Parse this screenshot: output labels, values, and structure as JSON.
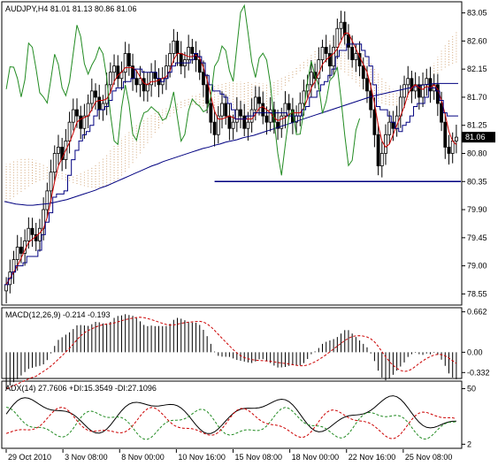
{
  "window": {
    "title": "AUDJPY,H4  81.01 81.13 80.86 81.06"
  },
  "colors": {
    "bull": "#000000",
    "bear": "#000000",
    "tenkan": "#cc0000",
    "kijun": "#000080",
    "chikou": "#228b22",
    "cloud": "#d2a679",
    "ma": "#000080",
    "level": "#000080",
    "macd_hist": "#000000",
    "macd_signal": "#cc0000",
    "adx": "#000000",
    "plus_di": "#228b22",
    "minus_di": "#cc0000",
    "price_label_bg": "#000000"
  },
  "chart_data": [
    {
      "type": "candlestick",
      "title": "AUDJPY,H4  81.01 81.13 80.86 81.06",
      "ylim": [
        78.4,
        83.2
      ],
      "y_ticks": [
        "83.05",
        "82.60",
        "82.15",
        "81.70",
        "81.25",
        "80.80",
        "80.35",
        "79.90",
        "79.45",
        "79.00",
        "78.55"
      ],
      "x_ticks": [
        "29 Oct 2010",
        "3 Nov 08:00",
        "8 Nov 00:00",
        "10 Nov 16:00",
        "15 Nov 08:00",
        "18 Nov 00:00",
        "22 Nov 16:00",
        "25 Nov 08:00"
      ],
      "current_price": "81.06",
      "horizontal_level": 80.35,
      "close": [
        78.7,
        78.9,
        79.1,
        79.3,
        79.2,
        79.4,
        79.6,
        79.5,
        79.4,
        79.6,
        79.9,
        80.2,
        80.5,
        80.8,
        80.9,
        80.7,
        81.0,
        81.3,
        81.5,
        81.4,
        81.2,
        81.4,
        81.6,
        81.8,
        81.7,
        81.5,
        81.6,
        81.9,
        82.1,
        82.2,
        82.0,
        82.1,
        82.4,
        82.2,
        82.0,
        81.9,
        82.0,
        81.8,
        81.9,
        82.1,
        82.0,
        81.9,
        82.0,
        82.2,
        82.4,
        82.6,
        82.4,
        82.2,
        82.3,
        82.5,
        82.4,
        82.3,
        82.1,
        81.9,
        81.6,
        81.3,
        81.1,
        81.4,
        81.6,
        81.4,
        81.2,
        81.3,
        81.5,
        81.4,
        81.2,
        81.3,
        81.5,
        81.7,
        81.6,
        81.4,
        81.3,
        81.5,
        81.3,
        81.2,
        81.4,
        81.6,
        81.5,
        81.3,
        81.4,
        81.6,
        81.8,
        81.9,
        82.1,
        82.0,
        82.3,
        82.5,
        82.4,
        82.2,
        82.5,
        82.8,
        82.9,
        82.7,
        82.5,
        82.3,
        82.4,
        82.2,
        82.0,
        81.8,
        81.5,
        81.1,
        80.6,
        80.8,
        81.1,
        81.3,
        81.2,
        81.4,
        81.7,
        81.9,
        82.0,
        81.8,
        81.9,
        81.7,
        81.9,
        82.0,
        81.8,
        81.9,
        81.6,
        81.3,
        80.9,
        80.8,
        81.0,
        81.06
      ],
      "series": [
        {
          "name": "MA",
          "values": [
            80.03,
            80.01,
            79.99,
            79.98,
            79.97,
            79.97,
            79.98,
            79.99,
            80.0,
            80.02,
            80.04,
            80.06,
            80.09,
            80.12,
            80.15,
            80.18,
            80.21,
            80.25,
            80.28,
            80.32,
            80.36,
            80.4,
            80.44,
            80.48,
            80.52,
            80.56,
            80.6,
            80.63,
            80.67,
            80.7,
            80.73,
            80.76,
            80.79,
            80.82,
            80.85,
            80.88,
            80.9,
            80.93,
            80.95,
            80.98,
            81.0,
            81.02,
            81.05,
            81.07,
            81.09,
            81.12,
            81.15,
            81.18,
            81.21,
            81.24,
            81.27,
            81.3,
            81.33,
            81.36,
            81.39,
            81.42,
            81.45,
            81.48,
            81.51,
            81.54,
            81.57,
            81.6,
            81.63,
            81.66,
            81.69,
            81.72,
            81.74,
            81.76,
            81.78,
            81.8,
            81.82,
            81.84,
            81.86,
            81.88,
            81.9,
            81.91,
            81.92,
            81.92,
            81.92,
            81.92,
            81.92
          ]
        }
      ]
    },
    {
      "type": "macd",
      "title": "MACD(12,26,9) -0.214 -0.193",
      "ylim": [
        -0.4,
        0.7
      ],
      "y_ticks": [
        "0.662",
        "0.00",
        "-0.332"
      ]
    },
    {
      "type": "adx",
      "title": "ADX(14) 27.7606 +DI:15.3549 -DI:27.1096",
      "ylim": [
        0,
        55
      ],
      "y_ticks": [
        "50",
        "2"
      ]
    }
  ]
}
